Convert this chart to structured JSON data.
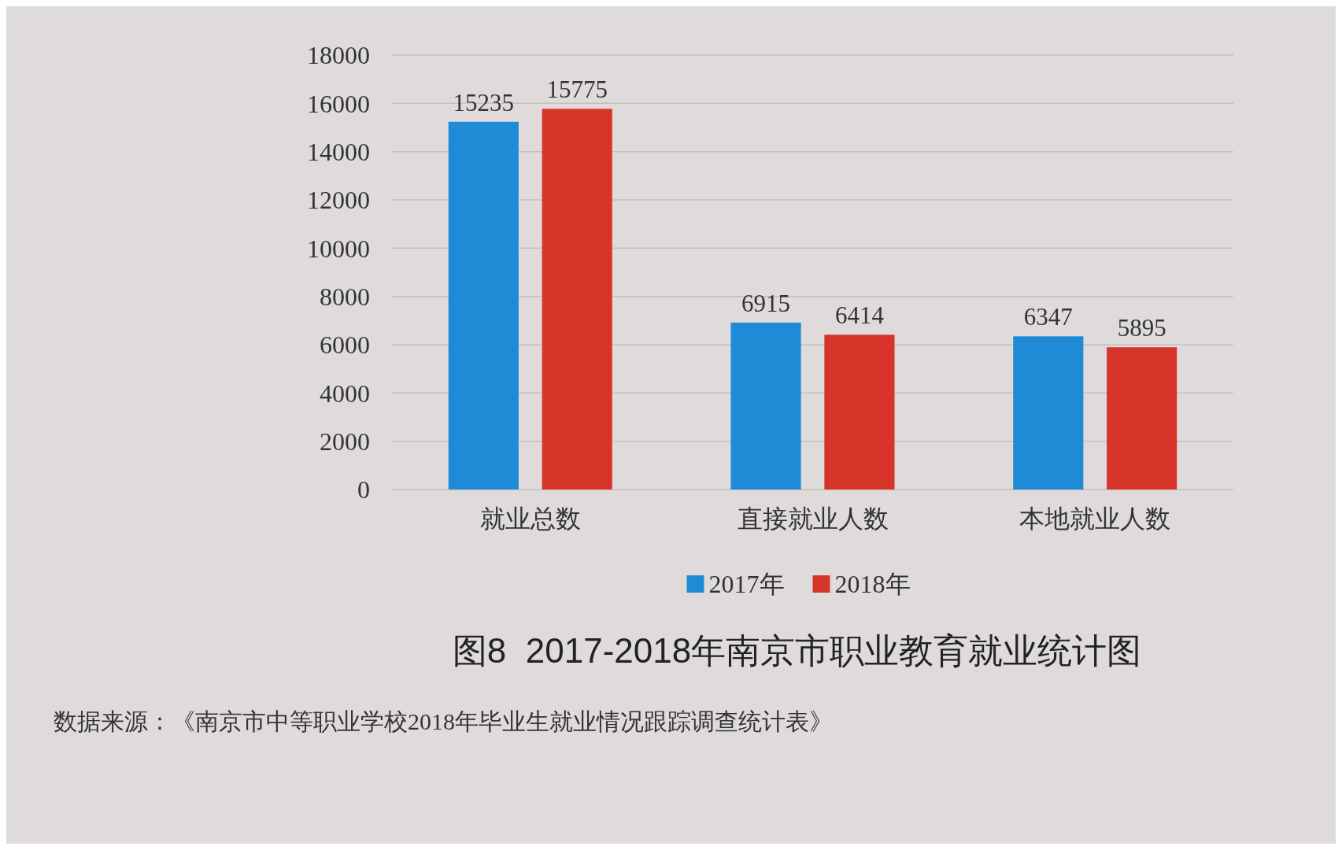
{
  "chart_data": {
    "type": "bar",
    "title": "图8  2017-2018年南京市职业教育就业统计图",
    "categories": [
      "就业总数",
      "直接就业人数",
      "本地就业人数"
    ],
    "series": [
      {
        "name": "2017年",
        "color": "#1f8ad6",
        "values": [
          15235,
          6915,
          6347
        ]
      },
      {
        "name": "2018年",
        "color": "#d8352a",
        "values": [
          15775,
          6414,
          5895
        ]
      }
    ],
    "ylim": [
      0,
      18000
    ],
    "yticks": [
      0,
      2000,
      4000,
      6000,
      8000,
      10000,
      12000,
      14000,
      16000,
      18000
    ],
    "grid": "y",
    "legend": "bottom",
    "data_labels": true,
    "annotations": [
      "数据来源：《南京市中等职业学校2018年毕业生就业情况跟踪调查统计表》"
    ]
  }
}
